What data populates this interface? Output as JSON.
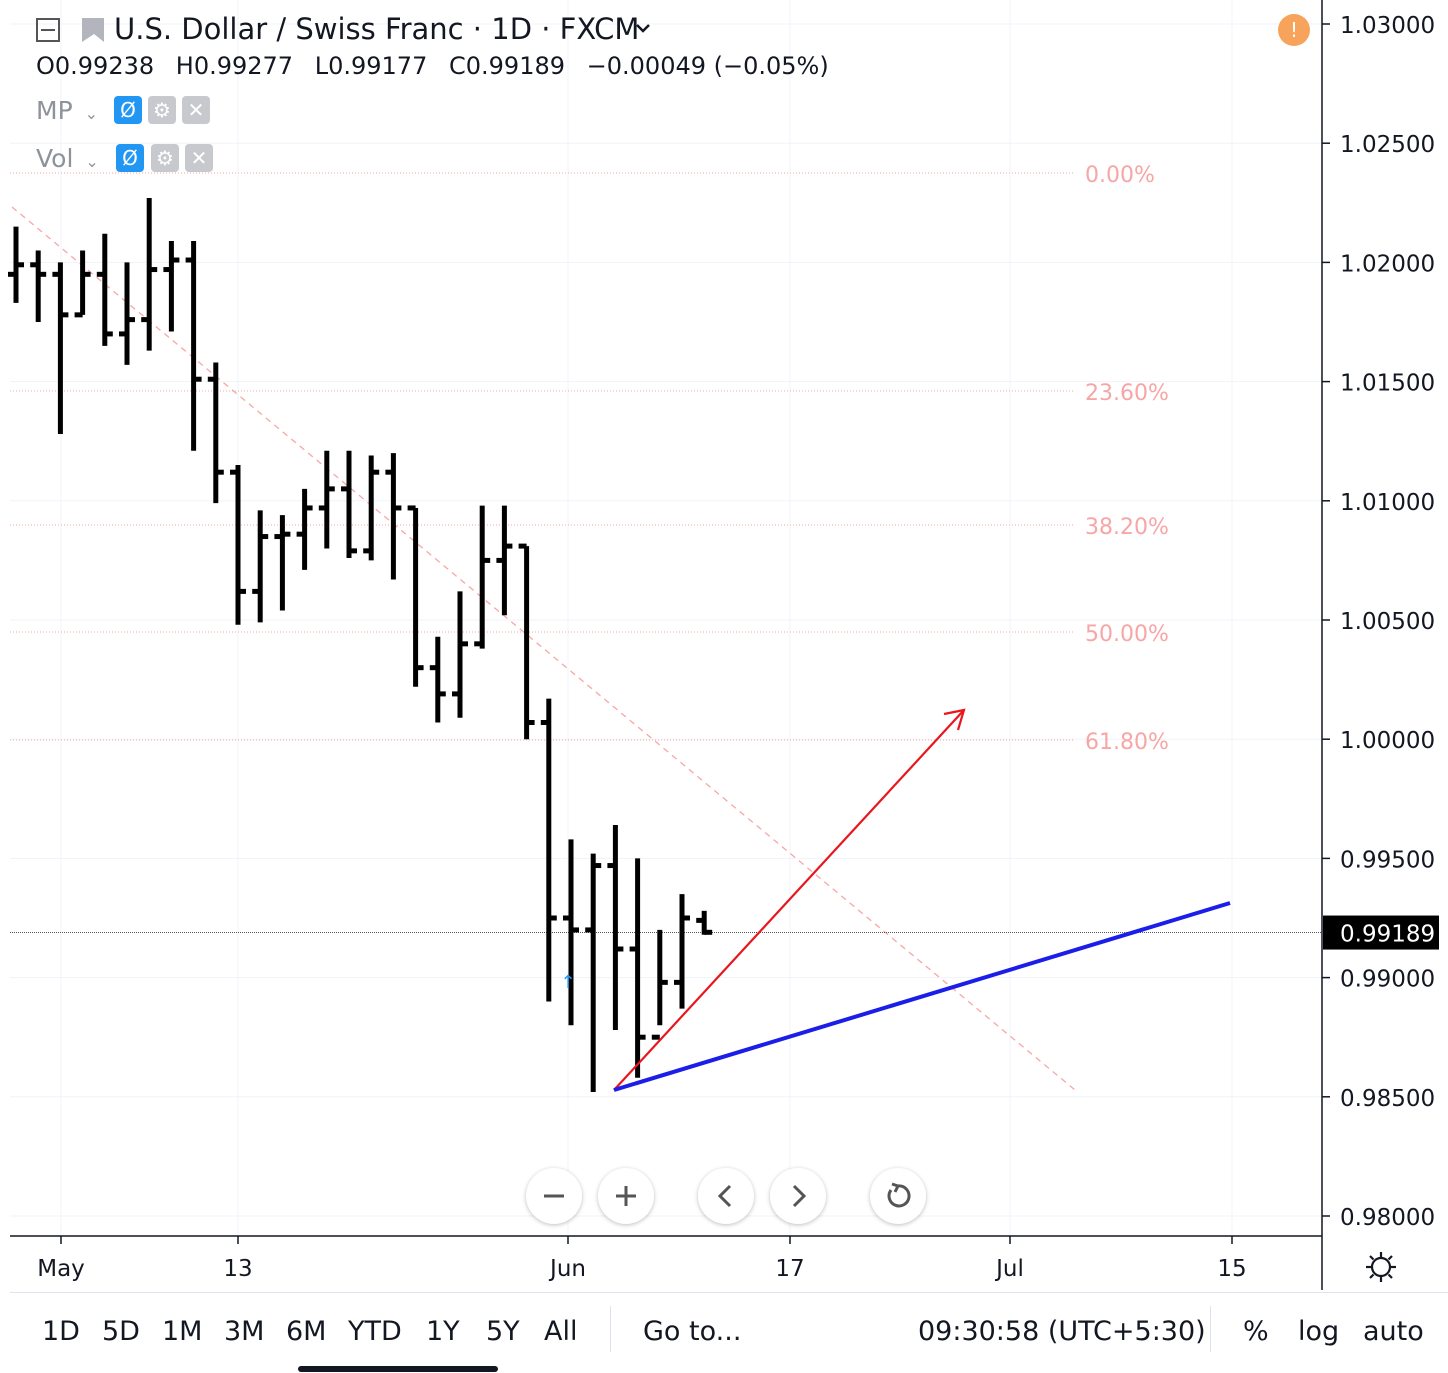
{
  "header": {
    "symbol": "U.S. Dollar / Swiss Franc · 1D · FXCM",
    "ohlc": {
      "o_label": "O",
      "o": "0.99238",
      "h_label": "H",
      "h": "0.99277",
      "l_label": "L",
      "l": "0.99177",
      "c_label": "C",
      "c": "0.99189",
      "change": "−0.00049 (−0.05%)"
    },
    "indicators": [
      {
        "name": "MP"
      },
      {
        "name": "Vol"
      }
    ]
  },
  "price_axis": {
    "ticks": [
      "1.03000",
      "1.02500",
      "1.02000",
      "1.01500",
      "1.01000",
      "1.00500",
      "1.00000",
      "0.99500",
      "0.99000",
      "0.98500",
      "0.98000"
    ],
    "current_price_label": "0.99189"
  },
  "time_axis": {
    "labels": [
      "May",
      "13",
      "Jun",
      "17",
      "Jul",
      "15"
    ]
  },
  "fib_levels": [
    "0.00%",
    "23.60%",
    "38.20%",
    "50.00%",
    "61.80%"
  ],
  "bottom_bar": {
    "timeframes": [
      "1D",
      "5D",
      "1M",
      "3M",
      "6M",
      "YTD",
      "1Y",
      "5Y",
      "All"
    ],
    "goto": "Go to...",
    "clock": "09:30:58 (UTC+5:30)",
    "percent": "%",
    "log": "log",
    "auto": "auto"
  },
  "colors": {
    "bars": "#000000",
    "fib": "#f7a6a6",
    "red_line": "#e8171e",
    "blue_line": "#1a1ee8",
    "indicator_blue": "#2196f3",
    "alert": "#f7a35c"
  },
  "chart_data": {
    "type": "ohlc",
    "title": "U.S. Dollar / Swiss Franc · 1D · FXCM",
    "y_range": [
      0.98,
      1.03
    ],
    "bars": [
      {
        "x": 0,
        "o": 1.0195,
        "h": 1.0215,
        "l": 1.0183,
        "c": 1.0199
      },
      {
        "x": 1,
        "o": 1.0199,
        "h": 1.0205,
        "l": 1.0175,
        "c": 1.0195
      },
      {
        "x": 2,
        "o": 1.0195,
        "h": 1.02,
        "l": 1.0128,
        "c": 1.0178
      },
      {
        "x": 3,
        "o": 1.0178,
        "h": 1.0205,
        "l": 1.0178,
        "c": 1.0195
      },
      {
        "x": 4,
        "o": 1.0195,
        "h": 1.0212,
        "l": 1.0165,
        "c": 1.017
      },
      {
        "x": 5,
        "o": 1.017,
        "h": 1.02,
        "l": 1.0157,
        "c": 1.0176
      },
      {
        "x": 6,
        "o": 1.0176,
        "h": 1.0227,
        "l": 1.0163,
        "c": 1.0197
      },
      {
        "x": 7,
        "o": 1.0197,
        "h": 1.0209,
        "l": 1.0171,
        "c": 1.0201
      },
      {
        "x": 8,
        "o": 1.0201,
        "h": 1.0209,
        "l": 1.0121,
        "c": 1.0151
      },
      {
        "x": 9,
        "o": 1.0151,
        "h": 1.0158,
        "l": 1.0099,
        "c": 1.0112
      },
      {
        "x": 10,
        "o": 1.0112,
        "h": 1.0115,
        "l": 1.0048,
        "c": 1.0062
      },
      {
        "x": 11,
        "o": 1.0062,
        "h": 1.0096,
        "l": 1.0049,
        "c": 1.0085
      },
      {
        "x": 12,
        "o": 1.0085,
        "h": 1.0094,
        "l": 1.0054,
        "c": 1.0086
      },
      {
        "x": 13,
        "o": 1.0086,
        "h": 1.0105,
        "l": 1.0071,
        "c": 1.0097
      },
      {
        "x": 14,
        "o": 1.0097,
        "h": 1.0121,
        "l": 1.008,
        "c": 1.0105
      },
      {
        "x": 15,
        "o": 1.0105,
        "h": 1.0121,
        "l": 1.0076,
        "c": 1.0079
      },
      {
        "x": 16,
        "o": 1.0079,
        "h": 1.0119,
        "l": 1.0075,
        "c": 1.0112
      },
      {
        "x": 17,
        "o": 1.0112,
        "h": 1.012,
        "l": 1.0067,
        "c": 1.0097
      },
      {
        "x": 18,
        "o": 1.0097,
        "h": 1.0097,
        "l": 1.0022,
        "c": 1.003
      },
      {
        "x": 19,
        "o": 1.003,
        "h": 1.0043,
        "l": 1.0007,
        "c": 1.0019
      },
      {
        "x": 20,
        "o": 1.0019,
        "h": 1.0062,
        "l": 1.0009,
        "c": 1.004
      },
      {
        "x": 21,
        "o": 1.004,
        "h": 1.0098,
        "l": 1.0038,
        "c": 1.0075
      },
      {
        "x": 22,
        "o": 1.0075,
        "h": 1.0098,
        "l": 1.0052,
        "c": 1.0081
      },
      {
        "x": 23,
        "o": 1.0081,
        "h": 1.0081,
        "l": 1.0,
        "c": 1.0007
      },
      {
        "x": 24,
        "o": 1.0007,
        "h": 1.0017,
        "l": 0.989,
        "c": 0.9925
      },
      {
        "x": 25,
        "o": 0.9925,
        "h": 0.9958,
        "l": 0.988,
        "c": 0.992
      },
      {
        "x": 26,
        "o": 0.992,
        "h": 0.9952,
        "l": 0.9852,
        "c": 0.9947
      },
      {
        "x": 27,
        "o": 0.9947,
        "h": 0.9964,
        "l": 0.9878,
        "c": 0.9912
      },
      {
        "x": 28,
        "o": 0.9912,
        "h": 0.995,
        "l": 0.9858,
        "c": 0.9875
      },
      {
        "x": 29,
        "o": 0.9875,
        "h": 0.992,
        "l": 0.988,
        "c": 0.9898
      },
      {
        "x": 30,
        "o": 0.9898,
        "h": 0.9935,
        "l": 0.9887,
        "c": 0.9925
      },
      {
        "x": 31,
        "o": 0.9924,
        "h": 0.9928,
        "l": 0.9918,
        "c": 0.9919
      }
    ]
  }
}
